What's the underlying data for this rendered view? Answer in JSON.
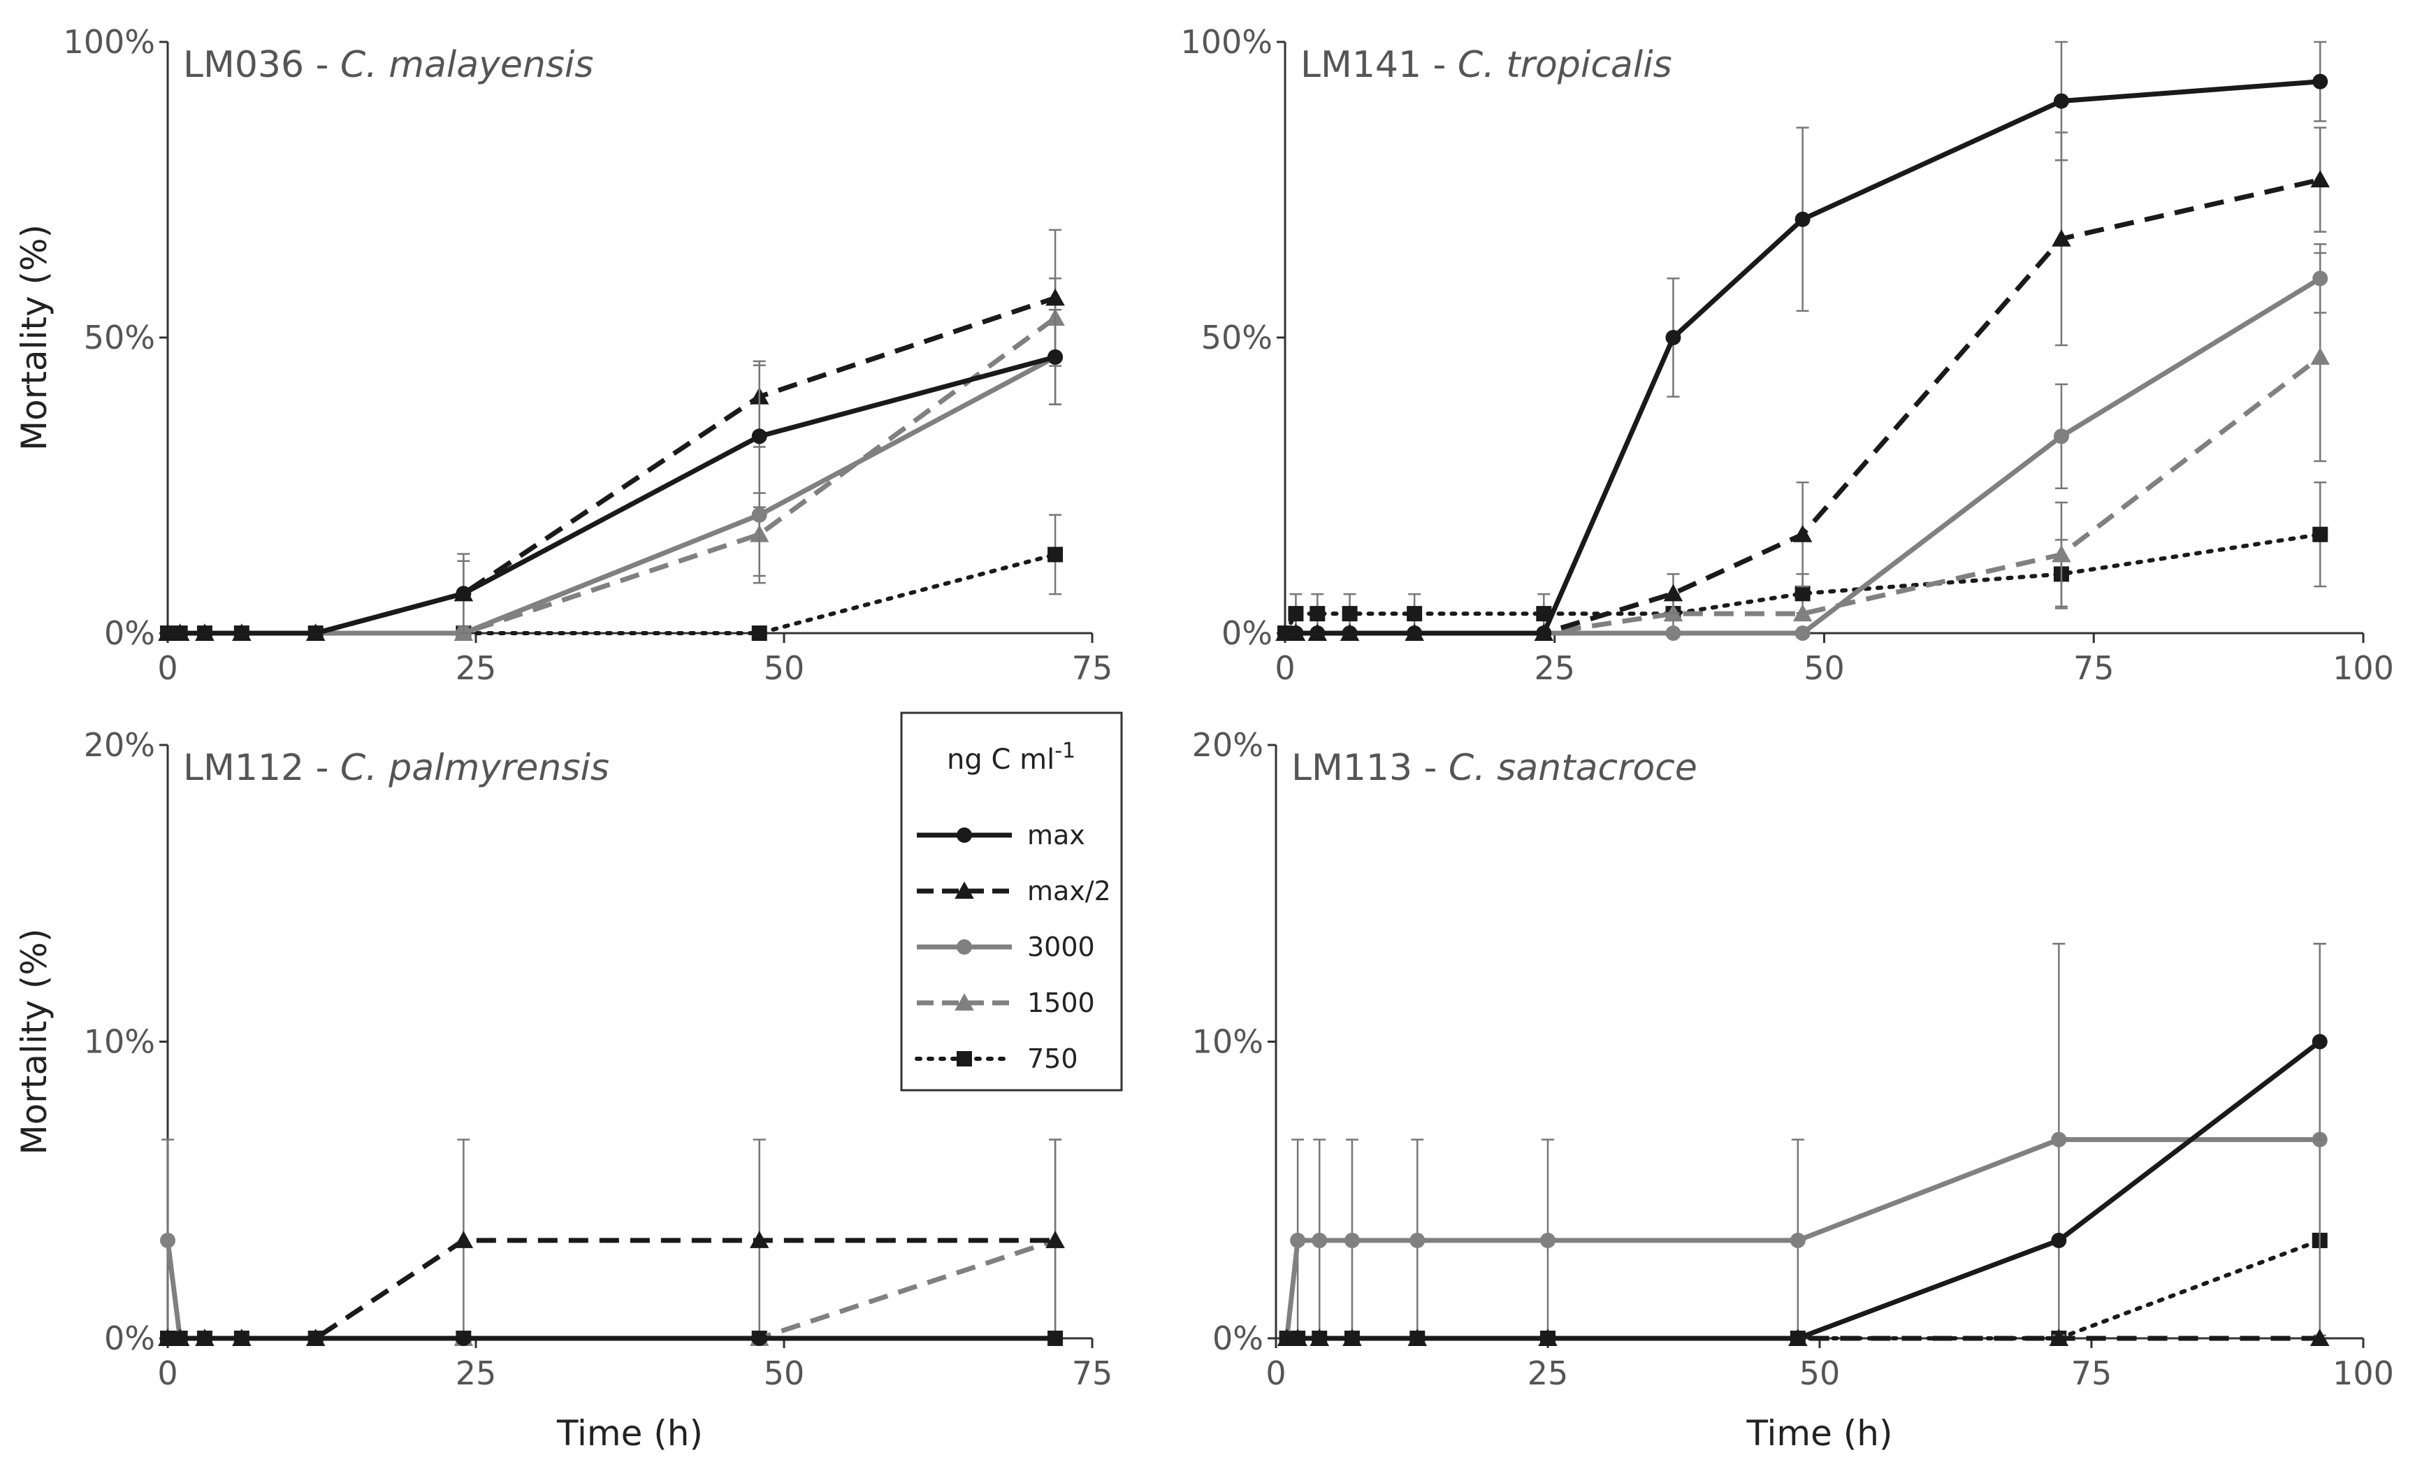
{
  "chart_data": [
    {
      "type": "line",
      "title_code": "LM036 - ",
      "title_species": "C. malayensis",
      "ylabel": "Mortality (%)",
      "xlabel": "",
      "xlim": [
        0,
        75
      ],
      "ylim": [
        0,
        100
      ],
      "xticks": [
        0,
        25,
        50,
        75
      ],
      "xtick_labels": [
        "0",
        "25",
        "50",
        "75"
      ],
      "yticks": [
        0,
        50,
        100
      ],
      "ytick_labels": [
        "0%",
        "50%",
        "100%"
      ],
      "series": [
        {
          "name": "max",
          "x": [
            0,
            1,
            3,
            6,
            12,
            24,
            48,
            72
          ],
          "y": [
            0,
            0,
            0,
            0,
            0,
            6.7,
            33.3,
            46.7
          ],
          "err": [
            0,
            0,
            0,
            0,
            0,
            6.7,
            12,
            8
          ]
        },
        {
          "name": "max/2",
          "x": [
            0,
            1,
            3,
            6,
            12,
            24,
            48,
            72
          ],
          "y": [
            0,
            0,
            0,
            0,
            0,
            6.7,
            40,
            56.7
          ],
          "err": [
            0,
            0,
            0,
            0,
            0,
            5.5,
            6,
            11.5
          ]
        },
        {
          "name": "3000",
          "x": [
            0,
            1,
            3,
            6,
            12,
            24,
            48,
            72
          ],
          "y": [
            0,
            0,
            0,
            0,
            0,
            0,
            20,
            46.7
          ],
          "err": [
            0,
            0,
            0,
            0,
            0,
            0,
            11.5,
            8
          ]
        },
        {
          "name": "1500",
          "x": [
            0,
            1,
            3,
            6,
            12,
            24,
            48,
            72
          ],
          "y": [
            0,
            0,
            0,
            0,
            0,
            0,
            16.7,
            53.3
          ],
          "err": [
            0,
            0,
            0,
            0,
            0,
            0,
            7,
            6.7
          ]
        },
        {
          "name": "750",
          "x": [
            0,
            1,
            3,
            6,
            12,
            24,
            48,
            72
          ],
          "y": [
            0,
            0,
            0,
            0,
            0,
            0,
            0,
            13.3
          ],
          "err": [
            0,
            0,
            0,
            0,
            0,
            0,
            0,
            6.7
          ]
        }
      ]
    },
    {
      "type": "line",
      "title_code": "LM141 - ",
      "title_species": "C. tropicalis",
      "ylabel": "",
      "xlabel": "",
      "xlim": [
        0,
        100
      ],
      "ylim": [
        0,
        100
      ],
      "xticks": [
        0,
        25,
        50,
        75,
        100
      ],
      "xtick_labels": [
        "0",
        "25",
        "50",
        "75",
        "100"
      ],
      "yticks": [
        0,
        50,
        100
      ],
      "ytick_labels": [
        "0%",
        "50%",
        "100%"
      ],
      "series": [
        {
          "name": "max",
          "x": [
            0,
            1,
            3,
            6,
            12,
            24,
            36,
            48,
            72,
            96
          ],
          "y": [
            0,
            0,
            0,
            0,
            0,
            0,
            50,
            70,
            90,
            93.3
          ],
          "err": [
            0,
            0,
            0,
            0,
            0,
            0,
            10,
            15.5,
            10,
            6.7
          ]
        },
        {
          "name": "max/2",
          "x": [
            0,
            1,
            3,
            6,
            12,
            24,
            36,
            48,
            72,
            96
          ],
          "y": [
            0,
            0,
            0,
            0,
            0,
            0,
            6.7,
            16.7,
            66.7,
            76.7
          ],
          "err": [
            0,
            0,
            0,
            0,
            0,
            0,
            3.3,
            8.8,
            18,
            8.8
          ]
        },
        {
          "name": "3000",
          "x": [
            0,
            1,
            3,
            6,
            12,
            24,
            36,
            48,
            72,
            96
          ],
          "y": [
            0,
            0,
            0,
            0,
            0,
            0,
            0,
            0,
            33.3,
            60
          ],
          "err": [
            0,
            0,
            0,
            0,
            0,
            0,
            0,
            0,
            8.8,
            5.8
          ]
        },
        {
          "name": "1500",
          "x": [
            0,
            1,
            3,
            6,
            12,
            24,
            36,
            48,
            72,
            96
          ],
          "y": [
            0,
            0,
            0,
            0,
            0,
            0,
            3.3,
            3.3,
            13.3,
            46.7
          ],
          "err": [
            0,
            0,
            0,
            0,
            0,
            0,
            0,
            0,
            8.8,
            17.6
          ]
        },
        {
          "name": "750",
          "x": [
            0,
            1,
            3,
            6,
            12,
            24,
            36,
            48,
            72,
            96
          ],
          "y": [
            0,
            3.3,
            3.3,
            3.3,
            3.3,
            3.3,
            3.3,
            6.7,
            10,
            16.7
          ],
          "err": [
            0,
            3.3,
            3.3,
            3.3,
            3.3,
            3.3,
            3.3,
            3.3,
            5.8,
            8.8
          ]
        }
      ]
    },
    {
      "type": "line",
      "title_code": "LM112 - ",
      "title_species": "C. palmyrensis",
      "ylabel": "Mortality (%)",
      "xlabel": "Time (h)",
      "xlim": [
        0,
        75
      ],
      "ylim": [
        0,
        20
      ],
      "xticks": [
        0,
        25,
        50,
        75
      ],
      "xtick_labels": [
        "0",
        "25",
        "50",
        "75"
      ],
      "yticks": [
        0,
        10,
        20
      ],
      "ytick_labels": [
        "0%",
        "10%",
        "20%"
      ],
      "series": [
        {
          "name": "max",
          "x": [
            0,
            1,
            3,
            6,
            12,
            24,
            48,
            72
          ],
          "y": [
            0,
            0,
            0,
            0,
            0,
            0,
            0,
            0
          ],
          "err": [
            0,
            0,
            0,
            0,
            0,
            0,
            0,
            0
          ]
        },
        {
          "name": "max/2",
          "x": [
            0,
            1,
            3,
            6,
            12,
            24,
            48,
            72
          ],
          "y": [
            0,
            0,
            0,
            0,
            0,
            3.3,
            3.3,
            3.3
          ],
          "err": [
            0,
            0,
            0,
            0,
            0,
            3.4,
            3.4,
            3.4
          ]
        },
        {
          "name": "3000",
          "x": [
            0,
            1,
            3,
            6,
            12,
            24,
            48,
            72
          ],
          "y": [
            3.3,
            0,
            0,
            0,
            0,
            0,
            0,
            0
          ],
          "err": [
            3.4,
            0,
            0,
            0,
            0,
            0,
            0,
            0
          ]
        },
        {
          "name": "1500",
          "x": [
            0,
            1,
            3,
            6,
            12,
            24,
            48,
            72
          ],
          "y": [
            0,
            0,
            0,
            0,
            0,
            0,
            0,
            3.3
          ],
          "err": [
            0,
            0,
            0,
            0,
            0,
            0,
            0,
            3.4
          ]
        },
        {
          "name": "750",
          "x": [
            0,
            1,
            3,
            6,
            12,
            24,
            48,
            72
          ],
          "y": [
            0,
            0,
            0,
            0,
            0,
            0,
            0,
            0
          ],
          "err": [
            0,
            0,
            0,
            0,
            0,
            0,
            0,
            0
          ]
        }
      ]
    },
    {
      "type": "line",
      "title_code": "LM113 - ",
      "title_species": "C. santacroce",
      "ylabel": "",
      "xlabel": "Time (h)",
      "xlim": [
        0,
        100
      ],
      "ylim": [
        0,
        20
      ],
      "xticks": [
        0,
        25,
        50,
        75,
        100
      ],
      "xtick_labels": [
        "0",
        "25",
        "50",
        "75",
        "100"
      ],
      "yticks": [
        0,
        10,
        20
      ],
      "ytick_labels": [
        "0%",
        "10%",
        "20%"
      ],
      "series": [
        {
          "name": "max",
          "x": [
            1,
            2,
            4,
            7,
            13,
            25,
            48,
            72,
            96
          ],
          "y": [
            0,
            0,
            0,
            0,
            0,
            0,
            0,
            3.3,
            10
          ],
          "err": [
            0,
            0,
            0,
            0,
            0,
            0,
            0,
            0,
            3.3
          ]
        },
        {
          "name": "max/2",
          "x": [
            1,
            2,
            4,
            7,
            13,
            25,
            48,
            72,
            96
          ],
          "y": [
            0,
            0,
            0,
            0,
            0,
            0,
            0,
            0,
            0
          ],
          "err": [
            0,
            0,
            0,
            0,
            0,
            0,
            0,
            0,
            0
          ]
        },
        {
          "name": "3000",
          "x": [
            1,
            2,
            4,
            7,
            13,
            25,
            48,
            72,
            96
          ],
          "y": [
            0,
            3.3,
            3.3,
            3.3,
            3.3,
            3.3,
            3.3,
            6.7,
            6.7
          ],
          "err": [
            0,
            3.4,
            3.4,
            3.4,
            3.4,
            3.4,
            3.4,
            6.6,
            6.6
          ]
        },
        {
          "name": "1500",
          "x": [
            1,
            2,
            4,
            7,
            13,
            25,
            48,
            72,
            96
          ],
          "y": [
            0,
            0,
            0,
            0,
            0,
            0,
            0,
            0,
            0
          ],
          "err": [
            0,
            0,
            0,
            0,
            0,
            0,
            0,
            0,
            0
          ]
        },
        {
          "name": "750",
          "x": [
            1,
            2,
            4,
            7,
            13,
            25,
            48,
            72,
            96
          ],
          "y": [
            0,
            0,
            0,
            0,
            0,
            0,
            0,
            0,
            3.3
          ],
          "err": [
            0,
            0,
            0,
            0,
            0,
            0,
            0,
            0,
            0
          ]
        }
      ]
    }
  ],
  "legend": {
    "title": "ng C ml",
    "title_sup": "-1",
    "entries": [
      "max",
      "max/2",
      "3000",
      "1500",
      "750"
    ]
  },
  "styles": {
    "max": {
      "color": "#1a1a1a",
      "dash": "solid",
      "marker": "circle"
    },
    "max/2": {
      "color": "#1a1a1a",
      "dash": "dashed",
      "marker": "triangle"
    },
    "3000": {
      "color": "#808080",
      "dash": "solid",
      "marker": "circle"
    },
    "1500": {
      "color": "#808080",
      "dash": "dashed",
      "marker": "triangle"
    },
    "750": {
      "color": "#1a1a1a",
      "dash": "dotted",
      "marker": "square"
    }
  }
}
